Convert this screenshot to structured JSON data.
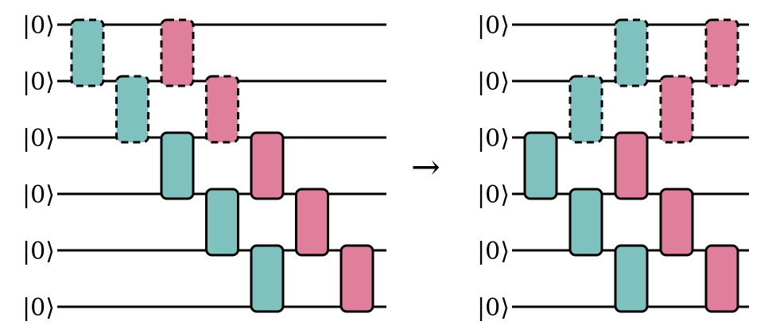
{
  "colors": {
    "gate_teal": "#7fc1be",
    "gate_pink": "#df7f9c",
    "wire": "#000000",
    "background": "#ffffff"
  },
  "arrow": "→",
  "circuits": [
    {
      "kets": [
        "|0⟩",
        "|0⟩",
        "|0⟩",
        "|0⟩",
        "|0⟩",
        "|0⟩"
      ],
      "gates": [
        {
          "column": 0,
          "top_wire": 0,
          "color": "teal",
          "style": "dashed"
        },
        {
          "column": 1,
          "top_wire": 1,
          "color": "teal",
          "style": "dashed"
        },
        {
          "column": 2,
          "top_wire": 0,
          "color": "pink",
          "style": "dashed"
        },
        {
          "column": 2,
          "top_wire": 2,
          "color": "teal",
          "style": "solid"
        },
        {
          "column": 3,
          "top_wire": 1,
          "color": "pink",
          "style": "dashed"
        },
        {
          "column": 3,
          "top_wire": 3,
          "color": "teal",
          "style": "solid"
        },
        {
          "column": 4,
          "top_wire": 2,
          "color": "pink",
          "style": "solid"
        },
        {
          "column": 4,
          "top_wire": 4,
          "color": "teal",
          "style": "solid"
        },
        {
          "column": 5,
          "top_wire": 3,
          "color": "pink",
          "style": "solid"
        },
        {
          "column": 6,
          "top_wire": 4,
          "color": "pink",
          "style": "solid"
        }
      ]
    },
    {
      "kets": [
        "|0⟩",
        "|0⟩",
        "|0⟩",
        "|0⟩",
        "|0⟩",
        "|0⟩"
      ],
      "gates": [
        {
          "column": 0,
          "top_wire": 2,
          "color": "teal",
          "style": "solid"
        },
        {
          "column": 1,
          "top_wire": 1,
          "color": "teal",
          "style": "dashed"
        },
        {
          "column": 1,
          "top_wire": 3,
          "color": "teal",
          "style": "solid"
        },
        {
          "column": 2,
          "top_wire": 0,
          "color": "teal",
          "style": "dashed"
        },
        {
          "column": 2,
          "top_wire": 2,
          "color": "pink",
          "style": "solid"
        },
        {
          "column": 2,
          "top_wire": 4,
          "color": "teal",
          "style": "solid"
        },
        {
          "column": 3,
          "top_wire": 1,
          "color": "pink",
          "style": "dashed"
        },
        {
          "column": 3,
          "top_wire": 3,
          "color": "pink",
          "style": "solid"
        },
        {
          "column": 4,
          "top_wire": 0,
          "color": "pink",
          "style": "dashed"
        },
        {
          "column": 4,
          "top_wire": 4,
          "color": "pink",
          "style": "solid"
        }
      ]
    }
  ]
}
